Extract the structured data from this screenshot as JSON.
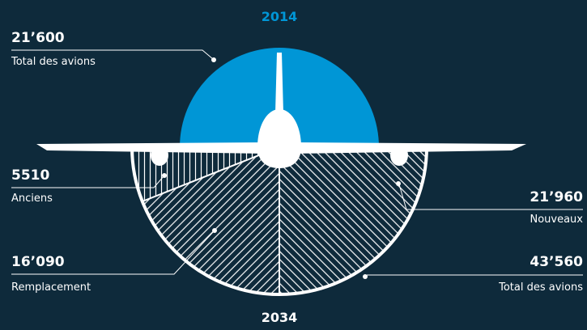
{
  "header": {
    "top_year": "2014",
    "bottom_year": "2034"
  },
  "labels": [
    {
      "value": "21’600",
      "text": "Total des avions"
    },
    {
      "value": "5510",
      "text": "Anciens"
    },
    {
      "value": "16’090",
      "text": "Remplacement"
    },
    {
      "value": "21’960",
      "text": "Nouveaux"
    },
    {
      "value": "43’560",
      "text": "Total des avions"
    }
  ]
}
